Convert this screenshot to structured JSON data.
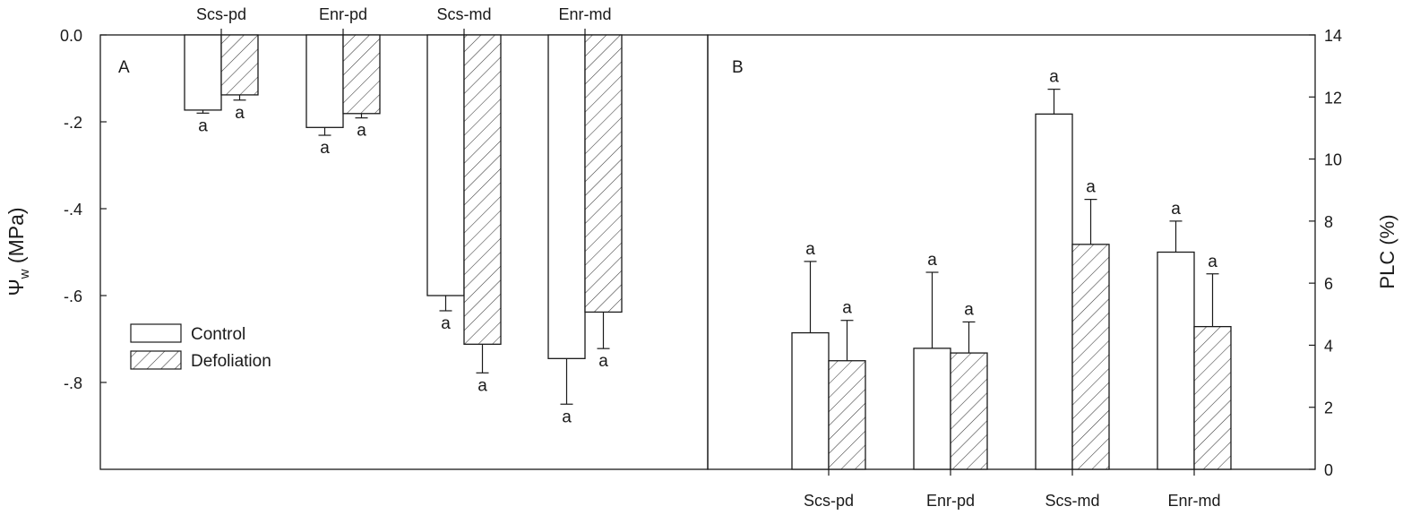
{
  "chart_data": [
    {
      "type": "bar",
      "panel_label": "A",
      "categories": [
        "Scs-pd",
        "Enr-pd",
        "Scs-md",
        "Enr-md"
      ],
      "ylabel_main": "Ψ",
      "ylabel_sub": "w",
      "ylabel_unit": " (MPa)",
      "ylim": [
        -1.0,
        0.0
      ],
      "yticks": [
        0.0,
        -0.2,
        -0.4,
        -0.6,
        -0.8
      ],
      "ytick_labels": [
        "0.0",
        "-.2",
        "-.4",
        "-.6",
        "-.8"
      ],
      "x_axis_position": "top",
      "legend_position": "bottom-left",
      "series": [
        {
          "name": "Control",
          "pattern": "open",
          "values": [
            -0.173,
            -0.213,
            -0.6,
            -0.745
          ],
          "errors": [
            0.007,
            0.018,
            0.035,
            0.105
          ],
          "labels": [
            "a",
            "a",
            "a",
            "a"
          ]
        },
        {
          "name": "Defoliation",
          "pattern": "hatched",
          "values": [
            -0.138,
            -0.181,
            -0.712,
            -0.638
          ],
          "errors": [
            0.012,
            0.01,
            0.066,
            0.084
          ],
          "labels": [
            "a",
            "a",
            "a",
            "a"
          ]
        }
      ]
    },
    {
      "type": "bar",
      "panel_label": "B",
      "categories": [
        "Scs-pd",
        "Enr-pd",
        "Scs-md",
        "Enr-md"
      ],
      "ylabel": "PLC (%)",
      "ylim": [
        0,
        14
      ],
      "yticks": [
        0,
        2,
        4,
        6,
        8,
        10,
        12,
        14
      ],
      "ytick_labels": [
        "0",
        "2",
        "4",
        "6",
        "8",
        "10",
        "12",
        "14"
      ],
      "x_axis_position": "bottom",
      "y_axis_position": "right",
      "series": [
        {
          "name": "Control",
          "pattern": "open",
          "values": [
            4.4,
            3.9,
            11.45,
            7.0
          ],
          "errors": [
            2.3,
            2.45,
            0.8,
            1.0
          ],
          "labels": [
            "a",
            "a",
            "a",
            "a"
          ]
        },
        {
          "name": "Defoliation",
          "pattern": "hatched",
          "values": [
            3.5,
            3.75,
            7.25,
            4.6
          ],
          "errors": [
            1.3,
            1.0,
            1.45,
            1.7
          ],
          "labels": [
            "a",
            "a",
            "a",
            "a"
          ]
        }
      ]
    }
  ],
  "legend": {
    "control_label": "Control",
    "defoliation_label": "Defoliation"
  }
}
